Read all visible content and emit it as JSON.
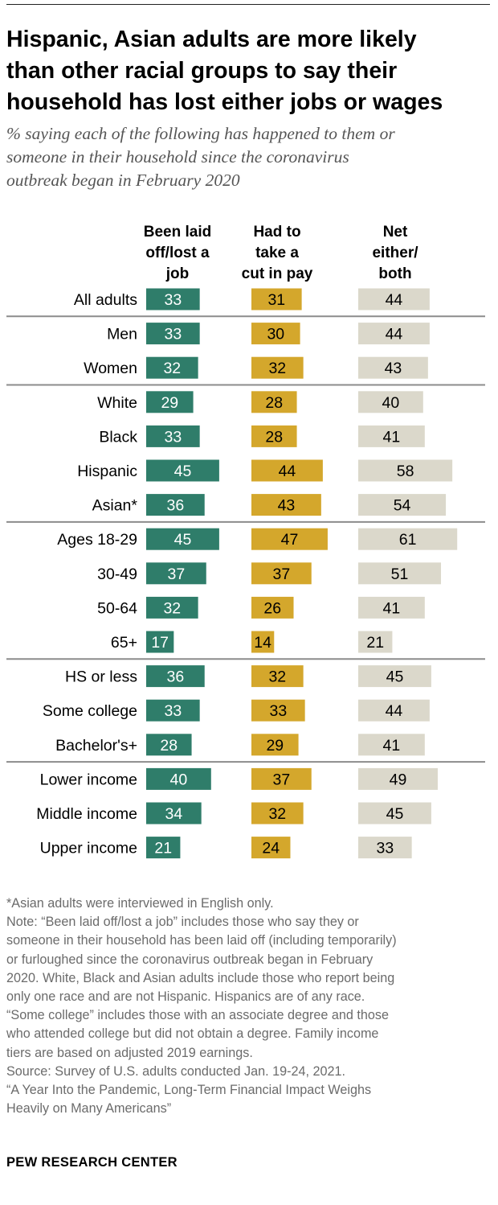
{
  "title_lines": [
    "Hispanic, Asian adults are more likely",
    "than other racial groups to say their",
    "household has lost either jobs or wages"
  ],
  "subtitle_lines": [
    "% saying each of the following has happened to them or",
    "someone in their household since the coronavirus",
    "outbreak began in February 2020"
  ],
  "column_headers": [
    [
      "Been laid",
      "off/lost a",
      "job"
    ],
    [
      "Had to",
      "take a",
      "cut in pay"
    ],
    [
      "Net",
      "either/",
      "both"
    ]
  ],
  "colors": {
    "laid_off": "#2f7d6a",
    "pay_cut": "#d4a72c",
    "net": "#dbd8cb",
    "label_light": "#ffffff",
    "label_dark": "#000000",
    "divider": "#8c8c8c"
  },
  "chart_data": {
    "type": "bar",
    "orientation": "horizontal",
    "categories": [
      "All adults",
      "Men",
      "Women",
      "White",
      "Black",
      "Hispanic",
      "Asian*",
      "Ages 18-29",
      "30-49",
      "50-64",
      "65+",
      "HS or less",
      "Some college",
      "Bachelor's+",
      "Lower income",
      "Middle income",
      "Upper income"
    ],
    "groups": [
      [
        "All adults"
      ],
      [
        "Men",
        "Women"
      ],
      [
        "White",
        "Black",
        "Hispanic",
        "Asian*"
      ],
      [
        "Ages 18-29",
        "30-49",
        "50-64",
        "65+"
      ],
      [
        "HS or less",
        "Some college",
        "Bachelor's+"
      ],
      [
        "Lower income",
        "Middle income",
        "Upper income"
      ]
    ],
    "series": [
      {
        "name": "Been laid off/lost a job",
        "values": [
          33,
          33,
          32,
          29,
          33,
          45,
          36,
          45,
          37,
          32,
          17,
          36,
          33,
          28,
          40,
          34,
          21
        ]
      },
      {
        "name": "Had to take a cut in pay",
        "values": [
          31,
          30,
          32,
          28,
          28,
          44,
          43,
          47,
          37,
          26,
          14,
          32,
          33,
          29,
          37,
          32,
          24
        ]
      },
      {
        "name": "Net either/both",
        "values": [
          44,
          44,
          43,
          40,
          41,
          58,
          54,
          61,
          51,
          41,
          21,
          45,
          44,
          41,
          49,
          45,
          33
        ]
      }
    ],
    "data_labels": true,
    "legend": "none (column headers)"
  },
  "footnote_lines": [
    "*Asian adults were interviewed in English only.",
    "Note: “Been laid off/lost a job” includes those who say they or",
    "someone in their household has been laid off (including temporarily)",
    "or furloughed since the coronavirus outbreak began in February",
    "2020. White, Black and Asian adults include those who report being",
    "only one race and are not Hispanic. Hispanics are of any race.",
    "“Some college” includes those with an associate degree and those",
    "who attended college but did not obtain a degree. Family income",
    "tiers are based on adjusted 2019 earnings.",
    "Source: Survey of U.S. adults conducted Jan. 19-24, 2021.",
    "“A Year Into the Pandemic, Long-Term Financial Impact Weighs",
    "Heavily on Many Americans”"
  ],
  "brand": "PEW RESEARCH CENTER"
}
